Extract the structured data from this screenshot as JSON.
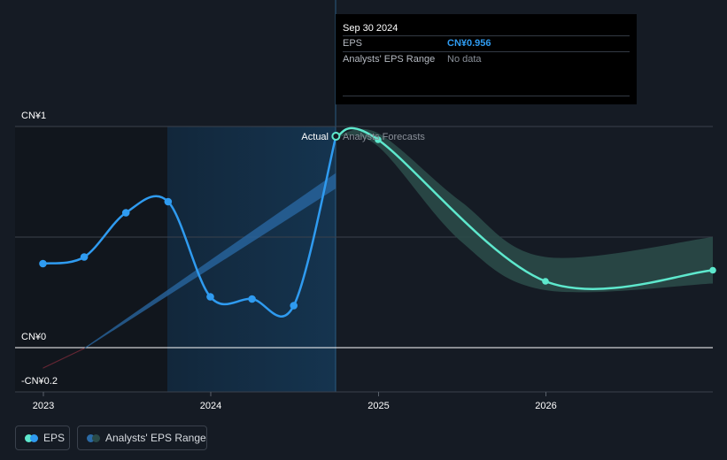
{
  "tooltip": {
    "date": "Sep 30 2024",
    "rows": [
      {
        "label": "EPS",
        "value": "CN¥0.956"
      },
      {
        "label": "Analysts' EPS Range",
        "value": "No data"
      }
    ]
  },
  "labels": {
    "actual": "Actual",
    "forecasts": "Analysts Forecasts"
  },
  "legend": {
    "eps": "EPS",
    "range": "Analysts' EPS Range"
  },
  "colors": {
    "background": "#151b24",
    "eps_actual": "#2f9bf0",
    "eps_forecast": "#5ee8cd",
    "range_fill": "#2a4a48",
    "past_highlight": "#132a40"
  },
  "chart_data": {
    "type": "line",
    "x_axis": {
      "ticks": [
        "2023",
        "2024",
        "2025",
        "2026"
      ]
    },
    "y_axis": {
      "ticks": [
        "CN¥1",
        "CN¥0",
        "-CN¥0.2"
      ],
      "range": [
        -0.2,
        1.0
      ]
    },
    "grid": true,
    "series": [
      {
        "name": "EPS",
        "kind": "actual",
        "points": [
          {
            "x": "2022-12-31",
            "y": 0.38
          },
          {
            "x": "2023-03-31",
            "y": 0.41
          },
          {
            "x": "2023-06-30",
            "y": 0.61
          },
          {
            "x": "2023-09-30",
            "y": 0.66
          },
          {
            "x": "2023-12-31",
            "y": 0.23
          },
          {
            "x": "2024-03-31",
            "y": 0.22
          },
          {
            "x": "2024-06-30",
            "y": 0.19
          },
          {
            "x": "2024-09-30",
            "y": 0.956
          }
        ]
      },
      {
        "name": "EPS",
        "kind": "forecast",
        "points": [
          {
            "x": "2024-09-30",
            "y": 0.956
          },
          {
            "x": "2024-12-31",
            "y": 0.94
          },
          {
            "x": "2025-12-31",
            "y": 0.3
          },
          {
            "x": "2026-12-31",
            "y": 0.35
          }
        ]
      },
      {
        "name": "Analysts' EPS Range",
        "kind": "range",
        "points": [
          {
            "x": "2024-09-30",
            "low": 0.956,
            "high": 0.956
          },
          {
            "x": "2024-12-31",
            "low": 0.91,
            "high": 0.97
          },
          {
            "x": "2025-06-30",
            "low": 0.48,
            "high": 0.66
          },
          {
            "x": "2025-12-31",
            "low": 0.26,
            "high": 0.41
          },
          {
            "x": "2026-12-31",
            "low": 0.29,
            "high": 0.5
          }
        ]
      }
    ]
  }
}
